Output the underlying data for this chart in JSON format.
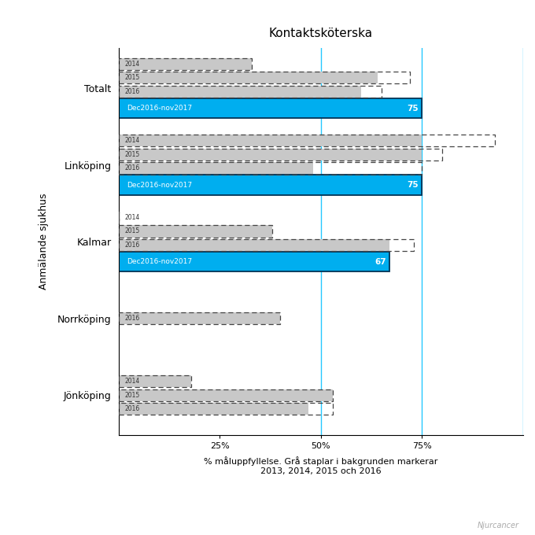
{
  "title": "Kontaktsköterska",
  "xlabel": "% måluppfyllelse. Grå staplar i bakgrunden markerar\n2013, 2014, 2015 och 2016",
  "ylabel": "Anmälande sjukhus",
  "watermark": "Njurcancer",
  "hospitals": [
    "Jönköping",
    "Norrköping",
    "Kalmar",
    "Linköping",
    "Totalt"
  ],
  "vline_color": "#00BFFF",
  "blue_bar_color": "#00AEEF",
  "blue_bar_label": "Dec2016-nov2017",
  "gray_bar_color": "#C8C8C8",
  "groups": [
    {
      "hospital": "Jönköping",
      "years": [
        {
          "year": "2014",
          "solid": 18,
          "dashed": 18
        },
        {
          "year": "2015",
          "solid": 53,
          "dashed": 53
        },
        {
          "year": "2016",
          "solid": 47,
          "dashed": 53
        }
      ],
      "blue_value": null
    },
    {
      "hospital": "Norrköping",
      "years": [
        {
          "year": "2016",
          "solid": 40,
          "dashed": 40
        }
      ],
      "blue_value": null
    },
    {
      "hospital": "Kalmar",
      "years": [
        {
          "year": "2014",
          "solid": 0,
          "dashed": 0
        },
        {
          "year": "2015",
          "solid": 38,
          "dashed": 38
        },
        {
          "year": "2016",
          "solid": 67,
          "dashed": 73
        }
      ],
      "blue_value": 67
    },
    {
      "hospital": "Linköping",
      "years": [
        {
          "year": "2014",
          "solid": 75,
          "dashed": 93
        },
        {
          "year": "2015",
          "solid": 75,
          "dashed": 80
        },
        {
          "year": "2016",
          "solid": 48,
          "dashed": 75
        }
      ],
      "blue_value": 75
    },
    {
      "hospital": "Totalt",
      "years": [
        {
          "year": "2014",
          "solid": 33,
          "dashed": 33
        },
        {
          "year": "2015",
          "solid": 64,
          "dashed": 72
        },
        {
          "year": "2016",
          "solid": 60,
          "dashed": 65
        }
      ],
      "blue_value": 75
    }
  ]
}
